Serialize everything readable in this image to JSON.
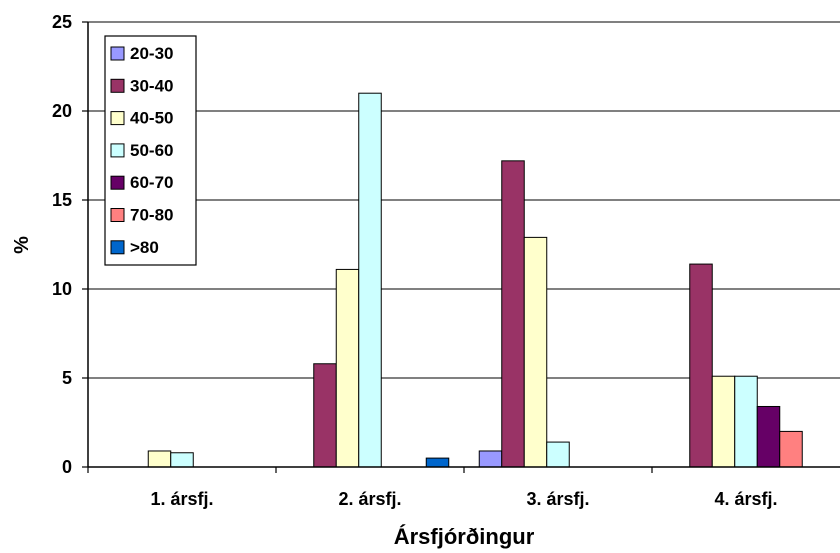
{
  "chart_data": {
    "type": "bar",
    "xlabel": "Ársfjórðingur",
    "ylabel": "%",
    "ylim": [
      0,
      25
    ],
    "yticks": [
      0,
      5,
      10,
      15,
      20,
      25
    ],
    "categories": [
      "1. ársfj.",
      "2. ársfj.",
      "3. ársfj.",
      "4. ársfj."
    ],
    "series": [
      {
        "name": "20-30",
        "color": "#9999ff",
        "values": [
          0,
          0,
          0.9,
          0
        ]
      },
      {
        "name": "30-40",
        "color": "#993366",
        "values": [
          0,
          5.8,
          17.2,
          11.4
        ]
      },
      {
        "name": "40-50",
        "color": "#ffffcc",
        "values": [
          0.9,
          11.1,
          12.9,
          5.1
        ]
      },
      {
        "name": "50-60",
        "color": "#ccffff",
        "values": [
          0.8,
          21.0,
          1.4,
          5.1
        ]
      },
      {
        "name": "60-70",
        "color": "#660066",
        "values": [
          0,
          0,
          0,
          3.4
        ]
      },
      {
        "name": "70-80",
        "color": "#ff8080",
        "values": [
          0,
          0,
          0,
          2.0
        ]
      },
      {
        "name": ">80",
        "color": "#0066cc",
        "values": [
          0,
          0.5,
          0,
          0
        ]
      }
    ],
    "grid": true,
    "legend_position": "top-left"
  }
}
